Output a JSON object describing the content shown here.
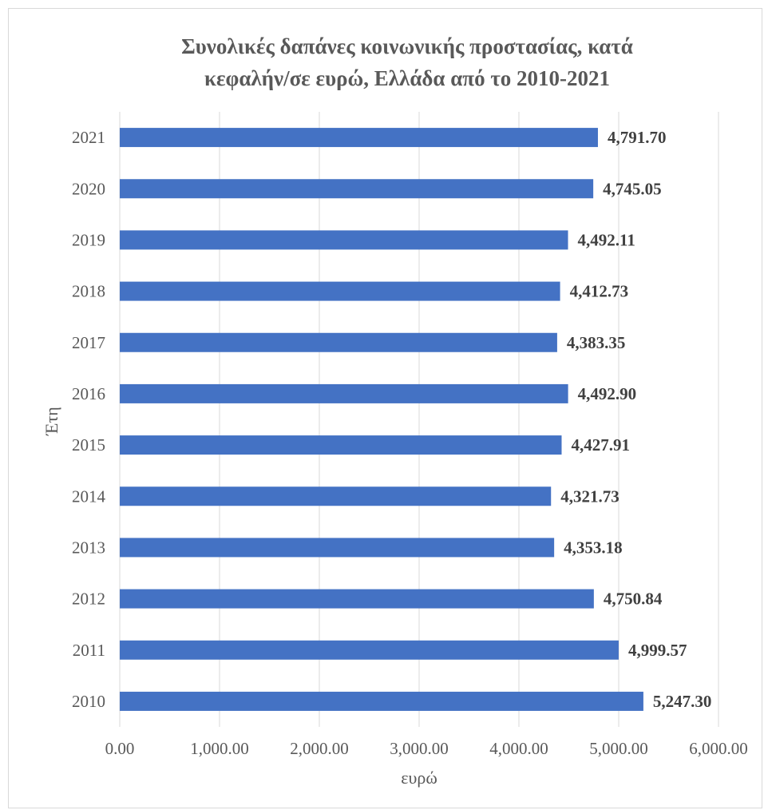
{
  "chart_data": {
    "type": "bar",
    "orientation": "horizontal",
    "title_line1": "Συνολικές δαπάνες κοινωνικής προστασίας, κατά",
    "title_line2": "κεφαλήν/σε ευρώ, Ελλάδα από το 2010-2021",
    "xlabel": "ευρώ",
    "ylabel": "Έτη",
    "categories": [
      "2021",
      "2020",
      "2019",
      "2018",
      "2017",
      "2016",
      "2015",
      "2014",
      "2013",
      "2012",
      "2011",
      "2010"
    ],
    "values": [
      4791.7,
      4745.05,
      4492.11,
      4412.73,
      4383.35,
      4492.9,
      4427.91,
      4321.73,
      4353.18,
      4750.84,
      4999.57,
      5247.3
    ],
    "data_labels": [
      "4,791.70",
      "4,745.05",
      "4,492.11",
      "4,412.73",
      "4,383.35",
      "4,492.90",
      "4,427.91",
      "4,321.73",
      "4,353.18",
      "4,750.84",
      "4,999.57",
      "5,247.30"
    ],
    "xticks": [
      "0.00",
      "1,000.00",
      "2,000.00",
      "3,000.00",
      "4,000.00",
      "5,000.00",
      "6,000.00"
    ],
    "xlim": [
      0,
      6000
    ],
    "grid": true,
    "legend": "none",
    "bar_color": "#4472c4"
  }
}
